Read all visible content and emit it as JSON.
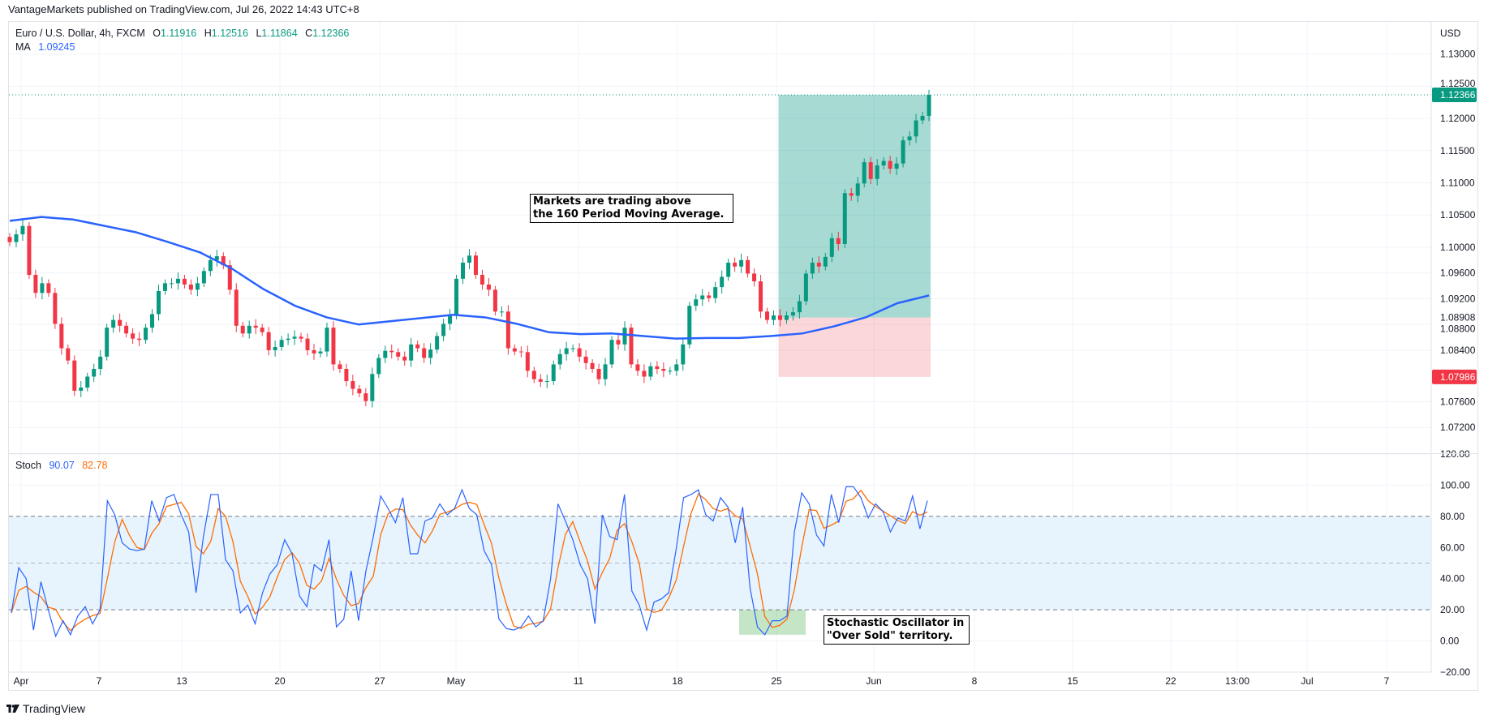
{
  "header": {
    "published": "VantageMarkets published on TradingView.com, Jul 26, 2022 14:43 UTC+8"
  },
  "legend": {
    "symbol": "Euro / U.S. Dollar, 4h, FXCM",
    "o_label": "O",
    "o": "1.11916",
    "h_label": "H",
    "h": "1.12516",
    "l_label": "L",
    "l": "1.11864",
    "c_label": "C",
    "c": "1.12366",
    "ma_label": "MA",
    "ma": "1.09245",
    "stoch_label": "Stoch",
    "stoch_k": "90.07",
    "stoch_d": "82.78"
  },
  "annotations": {
    "ma_note_line1": "Markets are trading above",
    "ma_note_line2": "the 160 Period Moving Average.",
    "stoch_note_line1": "Stochastic Oscillator in",
    "stoch_note_line2": "\"Over Sold\" territory."
  },
  "colors": {
    "up": "#089981",
    "down": "#f23645",
    "ma": "#2962ff",
    "stoch_k": "#2962ff",
    "stoch_d": "#ff6d00",
    "band": "#e3f2fd"
  },
  "footer": {
    "brand": "TradingView",
    "logo_icon": "tradingview-logo-icon"
  },
  "chart_data": [
    {
      "type": "candlestick",
      "title": "Euro / U.S. Dollar, 4h, FXCM",
      "currency_label": "USD",
      "price_ticks": [
        "1.13000",
        "1.12500",
        "1.12000",
        "1.11500",
        "1.11000",
        "1.10500",
        "1.10000",
        "1.09600",
        "1.09200",
        "1.08800",
        "1.08400",
        "1.07600",
        "1.07200"
      ],
      "time_ticks": [
        "Apr",
        "7",
        "13",
        "20",
        "27",
        "May",
        "11",
        "18",
        "25",
        "Jun",
        "8",
        "15",
        "22",
        "13:00",
        "Jul",
        "7"
      ],
      "ylim": [
        1.068,
        1.135
      ],
      "grid": true,
      "closes": [
        1.1008,
        1.102,
        1.1033,
        1.0957,
        1.0929,
        1.0944,
        1.0929,
        1.0881,
        1.0843,
        1.0824,
        1.0777,
        1.0782,
        1.0799,
        1.0811,
        1.083,
        1.0875,
        1.0887,
        1.0878,
        1.0866,
        1.0858,
        1.0856,
        1.0875,
        1.0896,
        1.0932,
        1.0944,
        1.0944,
        1.0951,
        1.0942,
        1.0934,
        1.0944,
        1.0963,
        1.098,
        1.0986,
        1.0972,
        1.0934,
        1.0878,
        1.0866,
        1.0878,
        1.0875,
        1.0868,
        1.084,
        1.0845,
        1.0856,
        1.0858,
        1.0861,
        1.0858,
        1.084,
        1.0835,
        1.0838,
        1.0875,
        1.0818,
        1.0811,
        1.0792,
        1.078,
        1.0773,
        1.0761,
        1.0803,
        1.0828,
        1.0839,
        1.0837,
        1.083,
        1.0824,
        1.0849,
        1.0843,
        1.0828,
        1.0841,
        1.0862,
        1.0881,
        1.0894,
        1.0951,
        1.0976,
        1.0987,
        1.0957,
        1.0942,
        1.0934,
        1.09,
        1.09,
        1.0843,
        1.0838,
        1.0837,
        1.0808,
        1.0795,
        1.0791,
        1.0792,
        1.0818,
        1.0834,
        1.0843,
        1.0843,
        1.083,
        1.082,
        1.0811,
        1.0795,
        1.0818,
        1.0856,
        1.0849,
        1.0875,
        1.0818,
        1.0808,
        1.0799,
        1.0815,
        1.0811,
        1.0808,
        1.0808,
        1.0818,
        1.0849,
        1.0909,
        1.0919,
        1.0925,
        1.0921,
        1.0938,
        1.0954,
        1.0976,
        1.097,
        1.098,
        1.0959,
        1.0947,
        1.09,
        1.0887,
        1.0894,
        1.0887,
        1.0894,
        1.0899,
        1.0916,
        1.0959,
        1.0976,
        1.097,
        1.0985,
        1.1014,
        1.1005,
        1.1084,
        1.108,
        1.1099,
        1.1132,
        1.1106,
        1.1127,
        1.1134,
        1.1122,
        1.113,
        1.1166,
        1.1172,
        1.1197,
        1.1204,
        1.12366
      ],
      "last_price": {
        "value": 1.12366,
        "label": "1.12366"
      },
      "moving_average": {
        "name": "MA",
        "period": 160,
        "values": [
          1.1041,
          1.1047,
          1.1043,
          1.1033,
          1.1023,
          1.1008,
          1.0992,
          1.0967,
          1.0935,
          1.0909,
          1.0891,
          1.088,
          1.0885,
          1.089,
          1.0895,
          1.0891,
          1.0881,
          1.0868,
          1.0865,
          1.0866,
          1.0862,
          1.0858,
          1.0859,
          1.0859,
          1.0862,
          1.0866,
          1.0877,
          1.0891,
          1.0913,
          1.0925
        ]
      },
      "position": {
        "entry": 1.08908,
        "entry_label": "1.08908",
        "target": 1.12366,
        "stop": 1.07986,
        "stop_label": "1.07986",
        "start_bar": 119
      }
    },
    {
      "type": "line",
      "title": "Stoch",
      "yticks": [
        "120.00",
        "100.00",
        "80.00",
        "60.00",
        "40.00",
        "20.00",
        "0.00",
        "−20.00"
      ],
      "ylim": [
        -20,
        120
      ],
      "bands": {
        "upper": 80,
        "middle": 50,
        "lower": 20
      },
      "series": [
        {
          "name": "%K",
          "values": [
            18,
            47,
            40,
            7,
            38,
            20,
            3,
            13,
            4,
            16,
            22,
            11,
            20,
            90,
            81,
            63,
            59,
            58,
            59,
            90,
            77,
            92,
            94,
            81,
            70,
            31,
            67,
            94,
            94,
            52,
            45,
            18,
            23,
            11,
            31,
            43,
            49,
            65,
            56,
            29,
            22,
            49,
            45,
            65,
            9,
            14,
            45,
            13,
            45,
            67,
            93,
            85,
            76,
            92,
            56,
            56,
            77,
            79,
            88,
            81,
            85,
            97,
            85,
            81,
            58,
            49,
            14,
            8,
            7,
            9,
            16,
            9,
            13,
            40,
            88,
            77,
            65,
            49,
            40,
            11,
            81,
            67,
            65,
            94,
            32,
            23,
            7,
            25,
            27,
            31,
            59,
            92,
            94,
            97,
            81,
            77,
            92,
            86,
            63,
            86,
            34,
            9,
            4,
            13,
            13,
            16,
            70,
            95,
            88,
            68,
            61,
            94,
            76,
            99,
            99,
            92,
            79,
            88,
            83,
            70,
            79,
            77,
            93,
            72,
            90.07
          ]
        },
        {
          "name": "%D",
          "smoothing": 3,
          "last": 82.78
        }
      ],
      "oversold_highlight": {
        "from_value": 4,
        "to_value": 20
      }
    }
  ]
}
